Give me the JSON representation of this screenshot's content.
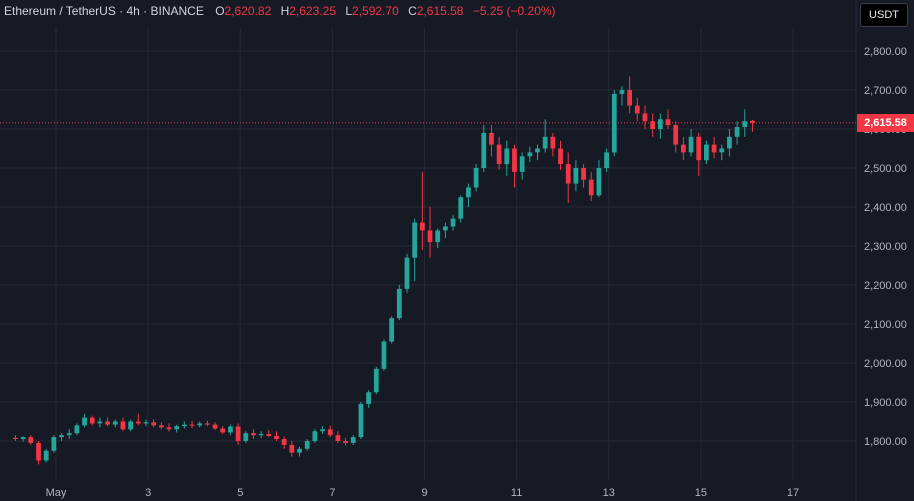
{
  "legend": {
    "symbol": "Ethereum / TetherUS · 4h · BINANCE",
    "o_label": "O",
    "o_value": "2,620.82",
    "h_label": "H",
    "h_value": "2,623.25",
    "l_label": "L",
    "l_value": "2,592.70",
    "c_label": "C",
    "c_value": "2,615.58",
    "change": "−5.25 (−0.20%)"
  },
  "currency_button": "USDT",
  "last_price_label": "2,615.58",
  "colors": {
    "background": "#161a25",
    "up": "#26a69a",
    "down": "#f23645",
    "grid": "#242935",
    "axis_text": "#b2b5be"
  },
  "chart_data": {
    "type": "candlestick",
    "xlabel": "",
    "ylabel": "",
    "ylim": [
      1720,
      2870
    ],
    "grid": true,
    "y_ticks": [
      {
        "value": 1800,
        "label": "1,800.00"
      },
      {
        "value": 1900,
        "label": "1,900.00"
      },
      {
        "value": 2000,
        "label": "2,000.00"
      },
      {
        "value": 2100,
        "label": "2,100.00"
      },
      {
        "value": 2200,
        "label": "2,200.00"
      },
      {
        "value": 2300,
        "label": "2,300.00"
      },
      {
        "value": 2400,
        "label": "2,400.00"
      },
      {
        "value": 2500,
        "label": "2,500.00"
      },
      {
        "value": 2600,
        "label": "2,600.00"
      },
      {
        "value": 2700,
        "label": "2,700.00"
      },
      {
        "value": 2800,
        "label": "2,800.00"
      }
    ],
    "x_ticks": [
      {
        "day": 1,
        "label": "May"
      },
      {
        "day": 3,
        "label": "3"
      },
      {
        "day": 5,
        "label": "5"
      },
      {
        "day": 7,
        "label": "7"
      },
      {
        "day": 9,
        "label": "9"
      },
      {
        "day": 11,
        "label": "11"
      },
      {
        "day": 13,
        "label": "13"
      },
      {
        "day": 15,
        "label": "15"
      },
      {
        "day": 17,
        "label": "17"
      }
    ],
    "x_range_days": [
      0.12,
      18.0
    ],
    "candles_per_day": 6,
    "last_price": 2615.58,
    "ohlc": [
      [
        1808,
        1815,
        1800,
        1805
      ],
      [
        1805,
        1812,
        1798,
        1810
      ],
      [
        1810,
        1815,
        1790,
        1795
      ],
      [
        1795,
        1800,
        1740,
        1750
      ],
      [
        1750,
        1780,
        1745,
        1775
      ],
      [
        1775,
        1815,
        1770,
        1810
      ],
      [
        1810,
        1820,
        1800,
        1815
      ],
      [
        1815,
        1830,
        1805,
        1820
      ],
      [
        1820,
        1845,
        1815,
        1840
      ],
      [
        1840,
        1870,
        1835,
        1860
      ],
      [
        1860,
        1865,
        1840,
        1845
      ],
      [
        1845,
        1860,
        1835,
        1850
      ],
      [
        1850,
        1860,
        1838,
        1842
      ],
      [
        1842,
        1855,
        1835,
        1850
      ],
      [
        1850,
        1860,
        1825,
        1830
      ],
      [
        1830,
        1855,
        1825,
        1850
      ],
      [
        1850,
        1870,
        1840,
        1845
      ],
      [
        1845,
        1855,
        1838,
        1848
      ],
      [
        1848,
        1856,
        1835,
        1840
      ],
      [
        1840,
        1848,
        1830,
        1835
      ],
      [
        1835,
        1845,
        1825,
        1830
      ],
      [
        1830,
        1842,
        1822,
        1838
      ],
      [
        1838,
        1850,
        1832,
        1842
      ],
      [
        1842,
        1852,
        1833,
        1840
      ],
      [
        1840,
        1850,
        1835,
        1845
      ],
      [
        1845,
        1852,
        1838,
        1842
      ],
      [
        1842,
        1848,
        1828,
        1832
      ],
      [
        1832,
        1838,
        1818,
        1822
      ],
      [
        1822,
        1842,
        1815,
        1837
      ],
      [
        1837,
        1845,
        1790,
        1800
      ],
      [
        1800,
        1825,
        1795,
        1820
      ],
      [
        1820,
        1830,
        1805,
        1815
      ],
      [
        1815,
        1825,
        1808,
        1818
      ],
      [
        1818,
        1828,
        1810,
        1813
      ],
      [
        1813,
        1825,
        1800,
        1805
      ],
      [
        1805,
        1812,
        1780,
        1790
      ],
      [
        1790,
        1800,
        1760,
        1770
      ],
      [
        1770,
        1785,
        1760,
        1780
      ],
      [
        1780,
        1805,
        1775,
        1800
      ],
      [
        1800,
        1830,
        1795,
        1825
      ],
      [
        1825,
        1838,
        1818,
        1830
      ],
      [
        1830,
        1840,
        1810,
        1815
      ],
      [
        1815,
        1825,
        1795,
        1800
      ],
      [
        1800,
        1808,
        1788,
        1795
      ],
      [
        1795,
        1815,
        1790,
        1810
      ],
      [
        1810,
        1900,
        1805,
        1895
      ],
      [
        1895,
        1930,
        1885,
        1925
      ],
      [
        1925,
        1990,
        1920,
        1985
      ],
      [
        1985,
        2060,
        1980,
        2055
      ],
      [
        2055,
        2120,
        2050,
        2115
      ],
      [
        2115,
        2200,
        2110,
        2190
      ],
      [
        2190,
        2280,
        2180,
        2270
      ],
      [
        2270,
        2370,
        2210,
        2360
      ],
      [
        2360,
        2490,
        2290,
        2340
      ],
      [
        2340,
        2400,
        2270,
        2310
      ],
      [
        2310,
        2345,
        2295,
        2340
      ],
      [
        2340,
        2360,
        2320,
        2350
      ],
      [
        2350,
        2380,
        2340,
        2370
      ],
      [
        2370,
        2430,
        2360,
        2425
      ],
      [
        2425,
        2460,
        2400,
        2450
      ],
      [
        2450,
        2510,
        2440,
        2500
      ],
      [
        2500,
        2610,
        2490,
        2590
      ],
      [
        2590,
        2610,
        2530,
        2560
      ],
      [
        2560,
        2580,
        2495,
        2510
      ],
      [
        2510,
        2570,
        2480,
        2550
      ],
      [
        2550,
        2560,
        2450,
        2490
      ],
      [
        2490,
        2540,
        2470,
        2530
      ],
      [
        2530,
        2555,
        2515,
        2540
      ],
      [
        2540,
        2560,
        2520,
        2550
      ],
      [
        2550,
        2625,
        2540,
        2580
      ],
      [
        2580,
        2590,
        2530,
        2550
      ],
      [
        2550,
        2570,
        2495,
        2510
      ],
      [
        2510,
        2540,
        2410,
        2460
      ],
      [
        2460,
        2520,
        2440,
        2500
      ],
      [
        2500,
        2510,
        2450,
        2470
      ],
      [
        2470,
        2490,
        2415,
        2430
      ],
      [
        2430,
        2520,
        2425,
        2500
      ],
      [
        2500,
        2550,
        2490,
        2540
      ],
      [
        2540,
        2700,
        2530,
        2690
      ],
      [
        2690,
        2710,
        2660,
        2700
      ],
      [
        2700,
        2735,
        2640,
        2660
      ],
      [
        2660,
        2680,
        2620,
        2640
      ],
      [
        2640,
        2660,
        2600,
        2620
      ],
      [
        2620,
        2640,
        2580,
        2600
      ],
      [
        2600,
        2640,
        2575,
        2625
      ],
      [
        2625,
        2650,
        2600,
        2610
      ],
      [
        2610,
        2620,
        2540,
        2560
      ],
      [
        2560,
        2580,
        2520,
        2540
      ],
      [
        2540,
        2600,
        2530,
        2580
      ],
      [
        2580,
        2590,
        2480,
        2520
      ],
      [
        2520,
        2570,
        2510,
        2560
      ],
      [
        2560,
        2580,
        2525,
        2540
      ],
      [
        2540,
        2560,
        2520,
        2550
      ],
      [
        2550,
        2600,
        2530,
        2580
      ],
      [
        2580,
        2620,
        2560,
        2605
      ],
      [
        2605,
        2650,
        2580,
        2620
      ],
      [
        2620.82,
        2623.25,
        2592.7,
        2615.58
      ]
    ]
  }
}
